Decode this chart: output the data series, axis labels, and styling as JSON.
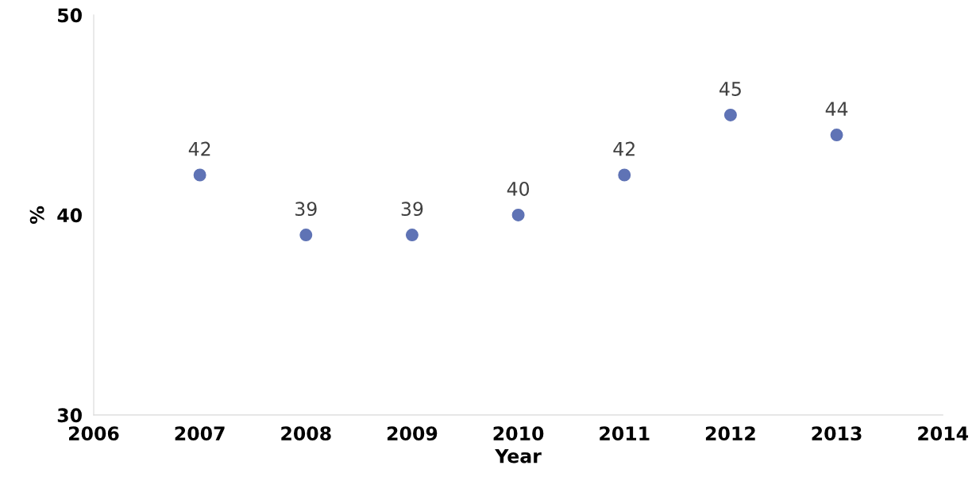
{
  "chart_data": {
    "type": "scatter",
    "xlabel": "Year",
    "ylabel": "%",
    "x": [
      2007,
      2008,
      2009,
      2010,
      2011,
      2012,
      2013
    ],
    "series": [
      {
        "color": "#5f73b5",
        "values": [
          42,
          39,
          39,
          40,
          42,
          45,
          44
        ]
      }
    ],
    "xlim": [
      2006,
      2014
    ],
    "xticks": [
      2006,
      2007,
      2008,
      2009,
      2010,
      2011,
      2012,
      2013,
      2014
    ],
    "ylim": [
      30,
      50
    ],
    "yticks": [
      30,
      40,
      50
    ],
    "data_labels": true,
    "grid": false,
    "legend": false,
    "marker": "circle"
  }
}
